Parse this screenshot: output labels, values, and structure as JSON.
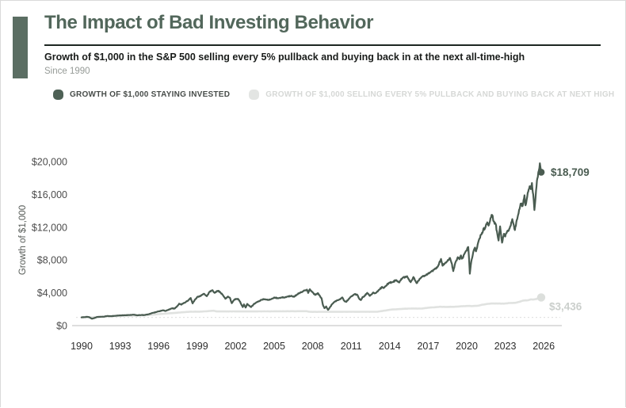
{
  "card": {
    "title": "The Impact of Bad Investing Behavior",
    "subtitle": "Growth of $1,000 in the S&P 500 selling every 5% pullback and buying back in at the next all-time-high",
    "since": "Since 1990"
  },
  "legend": [
    {
      "label": "GROWTH OF $1,000 STAYING INVESTED",
      "color": "#4e6156"
    },
    {
      "label": "GROWTH OF $1,000 SELLING EVERY 5% PULLBACK AND BUYING BACK AT NEXT HIGH",
      "color": "#e3e5e3"
    }
  ],
  "chart_data": {
    "type": "line",
    "title": "The Impact of Bad Investing Behavior",
    "subtitle": "Growth of $1,000 in the S&P 500 selling every 5% pullback and buying back in at the next all-time-high",
    "xlabel": "",
    "ylabel": "Growth of $1,000",
    "ylim": [
      0,
      20000
    ],
    "xlim": [
      1990,
      2026
    ],
    "grid": false,
    "legend_position": "top",
    "yticks": [
      0,
      4000,
      8000,
      12000,
      16000,
      20000
    ],
    "ytick_labels": [
      "$0",
      "$4,000",
      "$8,000",
      "$12,000",
      "$16,000",
      "$20,000"
    ],
    "xticks": [
      1990,
      1993,
      1996,
      1999,
      2002,
      2005,
      2008,
      2011,
      2014,
      2017,
      2020,
      2023,
      2026
    ],
    "baseline": {
      "value": 1000,
      "style": "dotted",
      "color": "#e2e2e2"
    },
    "axis_line_color": "#c9c9c9",
    "series": [
      {
        "name": "GROWTH OF $1,000 STAYING INVESTED",
        "color": "#4a5c51",
        "end_label": "$18,709",
        "end_value": 18709,
        "points": [
          [
            1990.0,
            1000
          ],
          [
            1990.2,
            1030
          ],
          [
            1990.45,
            1070
          ],
          [
            1990.6,
            1020
          ],
          [
            1990.8,
            840
          ],
          [
            1991.0,
            930
          ],
          [
            1991.2,
            1050
          ],
          [
            1991.5,
            1080
          ],
          [
            1991.75,
            1090
          ],
          [
            1992.0,
            1180
          ],
          [
            1992.3,
            1150
          ],
          [
            1992.6,
            1190
          ],
          [
            1993.0,
            1250
          ],
          [
            1993.4,
            1270
          ],
          [
            1993.8,
            1300
          ],
          [
            1994.1,
            1330
          ],
          [
            1994.3,
            1260
          ],
          [
            1994.6,
            1280
          ],
          [
            1994.9,
            1290
          ],
          [
            1995.2,
            1380
          ],
          [
            1995.5,
            1540
          ],
          [
            1995.8,
            1650
          ],
          [
            1996.0,
            1740
          ],
          [
            1996.35,
            1870
          ],
          [
            1996.55,
            1790
          ],
          [
            1996.8,
            1960
          ],
          [
            1997.0,
            2100
          ],
          [
            1997.25,
            2080
          ],
          [
            1997.45,
            2380
          ],
          [
            1997.6,
            2680
          ],
          [
            1997.75,
            2560
          ],
          [
            1997.9,
            2700
          ],
          [
            1998.1,
            2850
          ],
          [
            1998.35,
            3150
          ],
          [
            1998.5,
            3360
          ],
          [
            1998.65,
            2710
          ],
          [
            1998.8,
            3100
          ],
          [
            1999.0,
            3480
          ],
          [
            1999.2,
            3560
          ],
          [
            1999.4,
            3760
          ],
          [
            1999.55,
            3880
          ],
          [
            1999.75,
            3580
          ],
          [
            1999.95,
            4100
          ],
          [
            2000.2,
            4320
          ],
          [
            2000.35,
            4000
          ],
          [
            2000.5,
            4150
          ],
          [
            2000.65,
            4250
          ],
          [
            2000.8,
            4060
          ],
          [
            2001.0,
            3740
          ],
          [
            2001.2,
            3280
          ],
          [
            2001.4,
            3550
          ],
          [
            2001.55,
            3400
          ],
          [
            2001.7,
            2730
          ],
          [
            2001.85,
            3080
          ],
          [
            2002.0,
            3250
          ],
          [
            2002.2,
            3250
          ],
          [
            2002.35,
            2900
          ],
          [
            2002.55,
            2260
          ],
          [
            2002.65,
            2590
          ],
          [
            2002.78,
            2200
          ],
          [
            2002.9,
            2650
          ],
          [
            2003.05,
            2450
          ],
          [
            2003.2,
            2260
          ],
          [
            2003.4,
            2600
          ],
          [
            2003.6,
            2820
          ],
          [
            2003.8,
            2960
          ],
          [
            2004.0,
            3150
          ],
          [
            2004.25,
            3220
          ],
          [
            2004.55,
            3120
          ],
          [
            2004.8,
            3250
          ],
          [
            2005.0,
            3430
          ],
          [
            2005.3,
            3330
          ],
          [
            2005.6,
            3450
          ],
          [
            2005.8,
            3420
          ],
          [
            2006.0,
            3530
          ],
          [
            2006.35,
            3640
          ],
          [
            2006.55,
            3520
          ],
          [
            2006.8,
            3810
          ],
          [
            2007.0,
            4010
          ],
          [
            2007.15,
            4070
          ],
          [
            2007.4,
            4300
          ],
          [
            2007.55,
            4390
          ],
          [
            2007.65,
            3980
          ],
          [
            2007.78,
            4430
          ],
          [
            2007.9,
            4220
          ],
          [
            2008.1,
            3850
          ],
          [
            2008.2,
            3740
          ],
          [
            2008.4,
            3960
          ],
          [
            2008.55,
            3650
          ],
          [
            2008.7,
            3300
          ],
          [
            2008.8,
            2500
          ],
          [
            2008.92,
            2130
          ],
          [
            2009.05,
            2340
          ],
          [
            2009.2,
            1920
          ],
          [
            2009.35,
            2250
          ],
          [
            2009.5,
            2600
          ],
          [
            2009.7,
            2900
          ],
          [
            2009.9,
            3080
          ],
          [
            2010.1,
            3180
          ],
          [
            2010.3,
            3440
          ],
          [
            2010.5,
            2950
          ],
          [
            2010.62,
            2890
          ],
          [
            2010.8,
            3250
          ],
          [
            2011.0,
            3560
          ],
          [
            2011.3,
            3860
          ],
          [
            2011.5,
            3700
          ],
          [
            2011.62,
            3300
          ],
          [
            2011.75,
            3110
          ],
          [
            2011.88,
            3480
          ],
          [
            2012.0,
            3560
          ],
          [
            2012.25,
            3990
          ],
          [
            2012.45,
            3620
          ],
          [
            2012.7,
            4030
          ],
          [
            2012.85,
            3950
          ],
          [
            2013.0,
            4100
          ],
          [
            2013.2,
            4390
          ],
          [
            2013.4,
            4720
          ],
          [
            2013.5,
            4580
          ],
          [
            2013.7,
            4830
          ],
          [
            2013.95,
            5230
          ],
          [
            2014.2,
            5290
          ],
          [
            2014.5,
            5560
          ],
          [
            2014.75,
            5270
          ],
          [
            2014.9,
            5700
          ],
          [
            2015.0,
            5830
          ],
          [
            2015.35,
            6030
          ],
          [
            2015.63,
            5290
          ],
          [
            2015.85,
            5920
          ],
          [
            2016.1,
            5180
          ],
          [
            2016.3,
            5600
          ],
          [
            2016.5,
            5940
          ],
          [
            2016.75,
            6100
          ],
          [
            2017.0,
            6340
          ],
          [
            2017.25,
            6620
          ],
          [
            2017.5,
            6900
          ],
          [
            2017.75,
            7200
          ],
          [
            2018.0,
            8130
          ],
          [
            2018.12,
            7300
          ],
          [
            2018.3,
            7600
          ],
          [
            2018.5,
            7870
          ],
          [
            2018.7,
            8250
          ],
          [
            2018.85,
            7500
          ],
          [
            2018.95,
            6650
          ],
          [
            2019.1,
            7600
          ],
          [
            2019.3,
            8340
          ],
          [
            2019.45,
            8100
          ],
          [
            2019.55,
            8560
          ],
          [
            2019.62,
            8150
          ],
          [
            2019.8,
            8700
          ],
          [
            2020.0,
            9140
          ],
          [
            2020.12,
            9580
          ],
          [
            2020.18,
            8200
          ],
          [
            2020.24,
            6330
          ],
          [
            2020.35,
            7800
          ],
          [
            2020.5,
            8900
          ],
          [
            2020.65,
            9520
          ],
          [
            2020.72,
            9060
          ],
          [
            2020.85,
            9900
          ],
          [
            2021.0,
            10630
          ],
          [
            2021.15,
            11100
          ],
          [
            2021.3,
            11830
          ],
          [
            2021.45,
            11950
          ],
          [
            2021.6,
            12600
          ],
          [
            2021.7,
            12190
          ],
          [
            2021.85,
            13100
          ],
          [
            2021.98,
            13490
          ],
          [
            2022.1,
            12700
          ],
          [
            2022.25,
            12400
          ],
          [
            2022.35,
            11500
          ],
          [
            2022.48,
            10380
          ],
          [
            2022.6,
            12110
          ],
          [
            2022.75,
            10120
          ],
          [
            2022.9,
            11200
          ],
          [
            2023.0,
            10870
          ],
          [
            2023.15,
            11500
          ],
          [
            2023.35,
            11900
          ],
          [
            2023.55,
            12990
          ],
          [
            2023.75,
            11650
          ],
          [
            2023.9,
            12900
          ],
          [
            2024.0,
            13500
          ],
          [
            2024.2,
            14870
          ],
          [
            2024.35,
            14600
          ],
          [
            2024.5,
            15890
          ],
          [
            2024.58,
            14680
          ],
          [
            2024.75,
            16200
          ],
          [
            2024.9,
            17000
          ],
          [
            2025.0,
            16640
          ],
          [
            2025.08,
            17390
          ],
          [
            2025.18,
            16000
          ],
          [
            2025.27,
            14100
          ],
          [
            2025.4,
            16500
          ],
          [
            2025.5,
            17940
          ],
          [
            2025.62,
            18900
          ],
          [
            2025.7,
            19800
          ],
          [
            2025.75,
            19200
          ],
          [
            2025.8,
            18709
          ]
        ]
      },
      {
        "name": "GROWTH OF $1,000 SELLING EVERY 5% PULLBACK AND BUYING BACK AT NEXT HIGH",
        "color": "#e0e2e0",
        "end_label": "$3,436",
        "end_value": 3436,
        "points": [
          [
            1990.0,
            1000
          ],
          [
            1990.4,
            1040
          ],
          [
            1990.8,
            1000
          ],
          [
            1991.2,
            1060
          ],
          [
            1991.8,
            1090
          ],
          [
            1992.2,
            1130
          ],
          [
            1992.8,
            1160
          ],
          [
            1993.2,
            1190
          ],
          [
            1993.8,
            1220
          ],
          [
            1994.3,
            1230
          ],
          [
            1995.0,
            1260
          ],
          [
            1995.5,
            1330
          ],
          [
            1996.0,
            1400
          ],
          [
            1996.5,
            1460
          ],
          [
            1997.0,
            1520
          ],
          [
            1997.5,
            1580
          ],
          [
            1998.0,
            1640
          ],
          [
            1998.5,
            1700
          ],
          [
            1999.2,
            1700
          ],
          [
            1999.8,
            1760
          ],
          [
            2000.3,
            1820
          ],
          [
            2000.5,
            1730
          ],
          [
            2003.0,
            1730
          ],
          [
            2007.5,
            1760
          ],
          [
            2007.8,
            1680
          ],
          [
            2009.0,
            1680
          ],
          [
            2013.0,
            1690
          ],
          [
            2013.3,
            1760
          ],
          [
            2013.7,
            1850
          ],
          [
            2014.1,
            1950
          ],
          [
            2014.6,
            2000
          ],
          [
            2015.1,
            2050
          ],
          [
            2015.5,
            2080
          ],
          [
            2016.5,
            2080
          ],
          [
            2017.0,
            2180
          ],
          [
            2017.6,
            2250
          ],
          [
            2017.9,
            2300
          ],
          [
            2018.3,
            2280
          ],
          [
            2019.0,
            2290
          ],
          [
            2019.5,
            2350
          ],
          [
            2020.1,
            2400
          ],
          [
            2020.4,
            2380
          ],
          [
            2020.9,
            2430
          ],
          [
            2021.2,
            2550
          ],
          [
            2021.6,
            2650
          ],
          [
            2022.0,
            2700
          ],
          [
            2022.9,
            2680
          ],
          [
            2023.3,
            2750
          ],
          [
            2023.8,
            2780
          ],
          [
            2024.1,
            2900
          ],
          [
            2024.4,
            3050
          ],
          [
            2024.8,
            3100
          ],
          [
            2025.0,
            3200
          ],
          [
            2025.2,
            3180
          ],
          [
            2025.45,
            3250
          ],
          [
            2025.6,
            3380
          ],
          [
            2025.8,
            3436
          ]
        ]
      }
    ]
  }
}
